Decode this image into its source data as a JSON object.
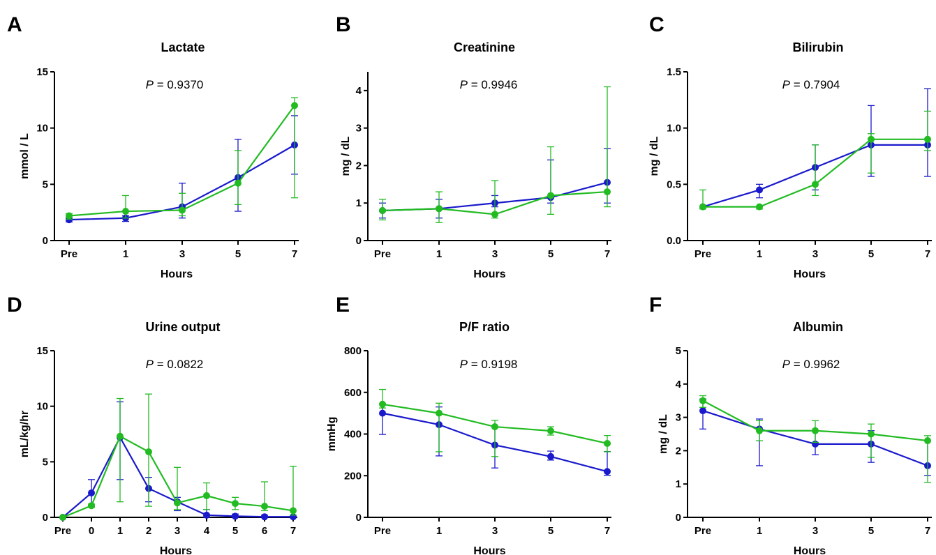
{
  "colors": {
    "blue": "#1a1acc",
    "green": "#22bb22"
  },
  "chart_data": [
    {
      "type": "line",
      "letter": "A",
      "title": "Lactate",
      "p_label": "P",
      "p_value": " = 0.9370",
      "xlabel": "Hours",
      "ylabel": "mmol / L",
      "categories": [
        "Pre",
        "1",
        "3",
        "5",
        "7"
      ],
      "ylim": [
        0,
        15
      ],
      "yticks": [
        0,
        5,
        10,
        15
      ],
      "ytick_labels": [
        "0",
        "5",
        "10",
        "15"
      ],
      "series": [
        {
          "color": "#1a1acc",
          "values": [
            1.85,
            2.0,
            3.0,
            5.6,
            8.5
          ],
          "err_low": [
            1.65,
            1.7,
            2.0,
            2.6,
            5.9
          ],
          "err_high": [
            2.0,
            2.2,
            5.1,
            9.0,
            11.1
          ]
        },
        {
          "color": "#22bb22",
          "values": [
            2.2,
            2.6,
            2.7,
            5.1,
            12.0
          ],
          "err_low": [
            1.9,
            2.0,
            2.2,
            3.2,
            3.8
          ],
          "err_high": [
            2.4,
            4.0,
            4.2,
            8.0,
            12.7
          ]
        }
      ]
    },
    {
      "type": "line",
      "letter": "B",
      "title": "Creatinine",
      "p_label": "P",
      "p_value": " = 0.9946",
      "xlabel": "Hours",
      "ylabel": "mg / dL",
      "categories": [
        "Pre",
        "1",
        "3",
        "5",
        "7"
      ],
      "ylim": [
        0,
        4.5
      ],
      "yticks": [
        0,
        1,
        2,
        3,
        4
      ],
      "ytick_labels": [
        "0",
        "1",
        "2",
        "3",
        "4"
      ],
      "series": [
        {
          "color": "#1a1acc",
          "values": [
            0.8,
            0.85,
            1.0,
            1.15,
            1.55
          ],
          "err_low": [
            0.6,
            0.6,
            0.9,
            1.0,
            1.0
          ],
          "err_high": [
            1.0,
            1.1,
            1.2,
            2.15,
            2.45
          ]
        },
        {
          "color": "#22bb22",
          "values": [
            0.8,
            0.85,
            0.7,
            1.2,
            1.3
          ],
          "err_low": [
            0.55,
            0.48,
            0.6,
            0.7,
            0.9
          ],
          "err_high": [
            1.1,
            1.3,
            1.6,
            2.5,
            4.1
          ]
        }
      ]
    },
    {
      "type": "line",
      "letter": "C",
      "title": "Bilirubin",
      "p_label": "P",
      "p_value": " = 0.7904",
      "xlabel": "Hours",
      "ylabel": "mg / dL",
      "categories": [
        "Pre",
        "1",
        "3",
        "5",
        "7"
      ],
      "ylim": [
        0,
        1.5
      ],
      "yticks": [
        0,
        0.5,
        1.0,
        1.5
      ],
      "ytick_labels": [
        "0.0",
        "0.5",
        "1.0",
        "1.5"
      ],
      "series": [
        {
          "color": "#1a1acc",
          "values": [
            0.3,
            0.45,
            0.65,
            0.85,
            0.85
          ],
          "err_low": [
            0.3,
            0.38,
            0.45,
            0.57,
            0.57
          ],
          "err_high": [
            0.3,
            0.5,
            0.85,
            1.2,
            1.35
          ]
        },
        {
          "color": "#22bb22",
          "values": [
            0.3,
            0.3,
            0.5,
            0.9,
            0.9
          ],
          "err_low": [
            0.28,
            0.28,
            0.4,
            0.6,
            0.8
          ],
          "err_high": [
            0.45,
            0.3,
            0.85,
            0.95,
            1.15
          ]
        }
      ]
    },
    {
      "type": "line",
      "letter": "D",
      "title": "Urine output",
      "p_label": "P",
      "p_value": " = 0.0822",
      "xlabel": "Hours",
      "ylabel": "mL/kg/hr",
      "categories": [
        "Pre",
        "0",
        "1",
        "2",
        "3",
        "4",
        "5",
        "6",
        "7"
      ],
      "ylim": [
        0,
        15
      ],
      "yticks": [
        0,
        5,
        10,
        15
      ],
      "ytick_labels": [
        "0",
        "5",
        "10",
        "15"
      ],
      "series": [
        {
          "color": "#1a1acc",
          "values": [
            0,
            2.2,
            7.2,
            2.6,
            1.4,
            0.2,
            0.1,
            0.05,
            0.05
          ],
          "err_low": [
            0,
            1.0,
            3.4,
            1.4,
            0.6,
            0.0,
            0.0,
            0.0,
            0.0
          ],
          "err_high": [
            0,
            3.4,
            10.4,
            3.6,
            1.8,
            0.7,
            0.3,
            0.2,
            0.1
          ]
        },
        {
          "color": "#22bb22",
          "values": [
            0,
            1.05,
            7.3,
            5.9,
            1.3,
            1.95,
            1.25,
            1.0,
            0.6
          ],
          "err_low": [
            0,
            0.9,
            1.4,
            1.0,
            0.7,
            0.7,
            0.7,
            0.6,
            0.2
          ],
          "err_high": [
            0,
            1.2,
            10.7,
            11.1,
            4.5,
            3.1,
            1.8,
            3.2,
            4.6
          ]
        }
      ]
    },
    {
      "type": "line",
      "letter": "E",
      "title": "P/F ratio",
      "p_label": "P",
      "p_value": " = 0.9198",
      "xlabel": "Hours",
      "ylabel": "mmHg",
      "categories": [
        "Pre",
        "1",
        "3",
        "5",
        "7"
      ],
      "ylim": [
        0,
        800
      ],
      "yticks": [
        0,
        200,
        400,
        600,
        800
      ],
      "ytick_labels": [
        "0",
        "200",
        "400",
        "600",
        "800"
      ],
      "series": [
        {
          "color": "#1a1acc",
          "values": [
            500,
            445,
            347,
            292,
            220
          ],
          "err_low": [
            398,
            295,
            237,
            275,
            202
          ],
          "err_high": [
            545,
            530,
            432,
            318,
            316
          ]
        },
        {
          "color": "#22bb22",
          "values": [
            543,
            500,
            435,
            415,
            355
          ],
          "err_low": [
            525,
            315,
            292,
            395,
            315
          ],
          "err_high": [
            614,
            548,
            466,
            435,
            393
          ]
        }
      ]
    },
    {
      "type": "line",
      "letter": "F",
      "title": "Albumin",
      "p_label": "P",
      "p_value": " = 0.9962",
      "xlabel": "Hours",
      "ylabel": "mg / dL",
      "categories": [
        "Pre",
        "1",
        "3",
        "5",
        "7"
      ],
      "ylim": [
        0,
        5
      ],
      "yticks": [
        0,
        1,
        2,
        3,
        4,
        5
      ],
      "ytick_labels": [
        "0",
        "1",
        "2",
        "3",
        "4",
        "5"
      ],
      "series": [
        {
          "color": "#1a1acc",
          "values": [
            3.2,
            2.65,
            2.2,
            2.2,
            1.55
          ],
          "err_low": [
            2.65,
            1.55,
            1.88,
            1.65,
            1.25
          ],
          "err_high": [
            3.55,
            2.95,
            2.6,
            2.6,
            2.3
          ]
        },
        {
          "color": "#22bb22",
          "values": [
            3.5,
            2.6,
            2.6,
            2.5,
            2.3
          ],
          "err_low": [
            3.3,
            2.3,
            2.25,
            1.8,
            1.05
          ],
          "err_high": [
            3.65,
            2.9,
            2.9,
            2.8,
            2.45
          ]
        }
      ]
    }
  ]
}
